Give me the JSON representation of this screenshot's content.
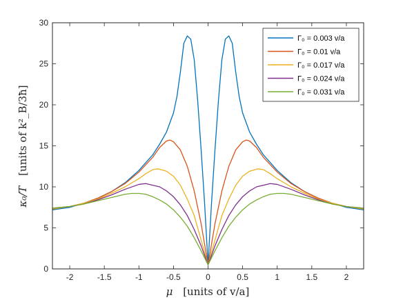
{
  "chart_data": {
    "type": "line",
    "xlabel_symbol": "μ",
    "xlabel_units": "[units of v/a]",
    "ylabel_symbol": "κ₀/T",
    "ylabel_units": "[units of k²_B/3ħ]",
    "xlim": [
      -2.25,
      2.25
    ],
    "ylim": [
      0,
      30
    ],
    "xticks": [
      -2,
      -1.5,
      -1,
      -0.5,
      0,
      0.5,
      1,
      1.5,
      2
    ],
    "xtick_labels": [
      "-2",
      "-1.5",
      "-1",
      "-0.5",
      "0",
      "0.5",
      "1",
      "1.5",
      "2"
    ],
    "yticks": [
      0,
      5,
      10,
      15,
      20,
      25,
      30
    ],
    "ytick_labels": [
      "0",
      "5",
      "10",
      "15",
      "20",
      "25",
      "30"
    ],
    "grid": false,
    "legend_position": "top-right",
    "series": [
      {
        "name": "Γ₀ = 0.003 v/a",
        "color": "#0072BD",
        "points": [
          [
            0,
            0.5
          ],
          [
            0.05,
            8.0
          ],
          [
            0.1,
            14.5
          ],
          [
            0.15,
            20.5
          ],
          [
            0.2,
            25.5
          ],
          [
            0.25,
            28.0
          ],
          [
            0.3,
            28.4
          ],
          [
            0.35,
            27.5
          ],
          [
            0.4,
            24.0
          ],
          [
            0.45,
            21.0
          ],
          [
            0.5,
            19.0
          ],
          [
            0.6,
            16.7
          ],
          [
            0.7,
            15.2
          ],
          [
            0.8,
            13.9
          ],
          [
            1.0,
            12.0
          ],
          [
            1.2,
            10.5
          ],
          [
            1.4,
            9.4
          ],
          [
            1.6,
            8.6
          ],
          [
            1.8,
            8.0
          ],
          [
            2.0,
            7.5
          ],
          [
            2.25,
            7.2
          ]
        ]
      },
      {
        "name": "Γ₀ = 0.01 v/a",
        "color": "#D95319",
        "points": [
          [
            0,
            0.5
          ],
          [
            0.1,
            5.5
          ],
          [
            0.2,
            9.5
          ],
          [
            0.3,
            12.5
          ],
          [
            0.4,
            14.5
          ],
          [
            0.5,
            15.5
          ],
          [
            0.55,
            15.7
          ],
          [
            0.6,
            15.6
          ],
          [
            0.7,
            14.8
          ],
          [
            0.8,
            13.6
          ],
          [
            1.0,
            11.8
          ],
          [
            1.2,
            10.4
          ],
          [
            1.4,
            9.4
          ],
          [
            1.6,
            8.6
          ],
          [
            1.8,
            8.0
          ],
          [
            2.0,
            7.6
          ],
          [
            2.25,
            7.3
          ]
        ]
      },
      {
        "name": "Γ₀ = 0.017 v/a",
        "color": "#EDB120",
        "points": [
          [
            0,
            0.5
          ],
          [
            0.1,
            3.5
          ],
          [
            0.2,
            6.5
          ],
          [
            0.3,
            8.5
          ],
          [
            0.4,
            10.2
          ],
          [
            0.5,
            11.3
          ],
          [
            0.6,
            11.9
          ],
          [
            0.72,
            12.2
          ],
          [
            0.8,
            12.1
          ],
          [
            0.9,
            11.6
          ],
          [
            1.0,
            11.0
          ],
          [
            1.2,
            10.0
          ],
          [
            1.4,
            9.2
          ],
          [
            1.6,
            8.5
          ],
          [
            1.8,
            8.0
          ],
          [
            2.0,
            7.6
          ],
          [
            2.25,
            7.3
          ]
        ]
      },
      {
        "name": "Γ₀ = 0.024 v/a",
        "color": "#7E2F8E",
        "points": [
          [
            0,
            0.5
          ],
          [
            0.1,
            2.8
          ],
          [
            0.2,
            4.8
          ],
          [
            0.3,
            6.5
          ],
          [
            0.4,
            7.8
          ],
          [
            0.5,
            8.8
          ],
          [
            0.6,
            9.5
          ],
          [
            0.7,
            10.0
          ],
          [
            0.9,
            10.4
          ],
          [
            1.0,
            10.3
          ],
          [
            1.2,
            9.7
          ],
          [
            1.4,
            9.0
          ],
          [
            1.6,
            8.4
          ],
          [
            1.8,
            7.9
          ],
          [
            2.0,
            7.6
          ],
          [
            2.25,
            7.4
          ]
        ]
      },
      {
        "name": "Γ₀ = 0.031 v/a",
        "color": "#77AC30",
        "points": [
          [
            0,
            0.5
          ],
          [
            0.1,
            2.2
          ],
          [
            0.2,
            3.8
          ],
          [
            0.3,
            5.2
          ],
          [
            0.4,
            6.3
          ],
          [
            0.5,
            7.2
          ],
          [
            0.6,
            7.9
          ],
          [
            0.7,
            8.4
          ],
          [
            0.8,
            8.8
          ],
          [
            0.9,
            9.1
          ],
          [
            1.0,
            9.2
          ],
          [
            1.1,
            9.2
          ],
          [
            1.2,
            9.1
          ],
          [
            1.4,
            8.7
          ],
          [
            1.6,
            8.3
          ],
          [
            1.8,
            7.9
          ],
          [
            2.0,
            7.6
          ],
          [
            2.25,
            7.4
          ]
        ]
      }
    ]
  }
}
